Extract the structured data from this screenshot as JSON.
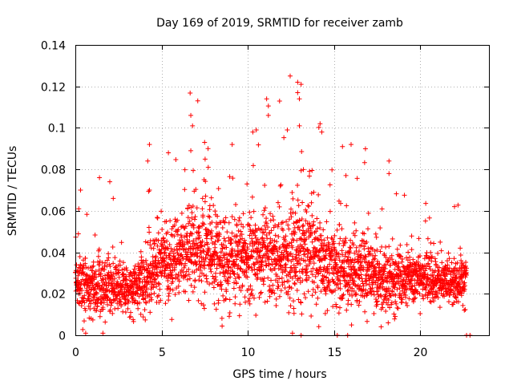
{
  "chart_data": {
    "type": "scatter",
    "title": "Day 169 of 2019, SRMTID for receiver zamb",
    "xlabel": "GPS time / hours",
    "ylabel": "SRMTID / TECUs",
    "xlim": [
      0,
      24
    ],
    "ylim": [
      0,
      0.14
    ],
    "xticks": [
      0,
      5,
      10,
      15,
      20
    ],
    "xtick_labels": [
      "0",
      "5",
      "10",
      "15",
      "20"
    ],
    "yticks": [
      0,
      0.02,
      0.04,
      0.06,
      0.08,
      0.1,
      0.12,
      0.14
    ],
    "ytick_labels": [
      "0",
      "0.02",
      "0.04",
      "0.06",
      "0.08",
      "0.1",
      "0.12",
      "0.14"
    ],
    "grid": true,
    "marker": "+",
    "marker_color": "#ff0000",
    "envelope": {
      "x": [
        0,
        1,
        2,
        3,
        4,
        5,
        6,
        7,
        8,
        9,
        10,
        11,
        12,
        13,
        14,
        15,
        16,
        17,
        18,
        19,
        20,
        21,
        22,
        22.7
      ],
      "median": [
        0.027,
        0.021,
        0.024,
        0.022,
        0.025,
        0.036,
        0.04,
        0.042,
        0.039,
        0.033,
        0.037,
        0.04,
        0.037,
        0.04,
        0.037,
        0.031,
        0.032,
        0.031,
        0.026,
        0.027,
        0.027,
        0.026,
        0.024,
        0.028
      ],
      "spread": [
        0.012,
        0.013,
        0.011,
        0.01,
        0.013,
        0.016,
        0.018,
        0.019,
        0.019,
        0.019,
        0.02,
        0.02,
        0.02,
        0.022,
        0.02,
        0.017,
        0.016,
        0.015,
        0.013,
        0.012,
        0.011,
        0.01,
        0.01,
        0.01
      ]
    },
    "n_points": 3000,
    "notable_points": [
      {
        "x": 0.3,
        "y": 0.07
      },
      {
        "x": 0.2,
        "y": 0.061
      },
      {
        "x": 1.4,
        "y": 0.076
      },
      {
        "x": 2.0,
        "y": 0.074
      },
      {
        "x": 2.2,
        "y": 0.066
      },
      {
        "x": 4.3,
        "y": 0.092
      },
      {
        "x": 4.2,
        "y": 0.084
      },
      {
        "x": 4.3,
        "y": 0.07
      },
      {
        "x": 5.4,
        "y": 0.088
      },
      {
        "x": 6.7,
        "y": 0.106
      },
      {
        "x": 6.8,
        "y": 0.101
      },
      {
        "x": 6.7,
        "y": 0.089
      },
      {
        "x": 7.5,
        "y": 0.093
      },
      {
        "x": 7.7,
        "y": 0.09
      },
      {
        "x": 9.1,
        "y": 0.092
      },
      {
        "x": 10.3,
        "y": 0.098
      },
      {
        "x": 10.5,
        "y": 0.099
      },
      {
        "x": 11.1,
        "y": 0.114
      },
      {
        "x": 11.2,
        "y": 0.106
      },
      {
        "x": 12.3,
        "y": 0.099
      },
      {
        "x": 12.9,
        "y": 0.122
      },
      {
        "x": 13.1,
        "y": 0.121
      },
      {
        "x": 12.9,
        "y": 0.117
      },
      {
        "x": 13.0,
        "y": 0.114
      },
      {
        "x": 13.0,
        "y": 0.101
      },
      {
        "x": 14.2,
        "y": 0.102
      },
      {
        "x": 14.3,
        "y": 0.098
      },
      {
        "x": 15.5,
        "y": 0.091
      },
      {
        "x": 16.0,
        "y": 0.092
      },
      {
        "x": 18.2,
        "y": 0.084
      },
      {
        "x": 18.2,
        "y": 0.078
      },
      {
        "x": 22.0,
        "y": 0.062
      },
      {
        "x": 0.6,
        "y": 0.001
      },
      {
        "x": 1.6,
        "y": 0.001
      },
      {
        "x": 12.6,
        "y": 0.001
      },
      {
        "x": 13.1,
        "y": 0.0
      },
      {
        "x": 15.2,
        "y": 0.0
      },
      {
        "x": 15.8,
        "y": 0.0
      },
      {
        "x": 22.7,
        "y": 0.0
      },
      {
        "x": 22.9,
        "y": 0.0
      }
    ]
  }
}
